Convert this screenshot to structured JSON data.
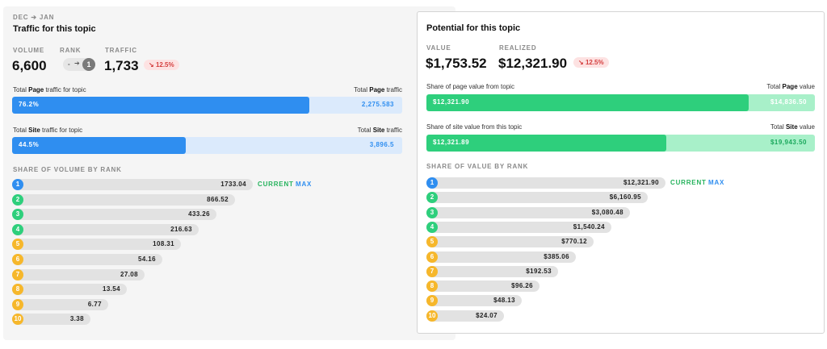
{
  "colors": {
    "blue": "#2f8ef0",
    "blue_light": "#dbeafc",
    "green": "#2ecf7c",
    "green_light": "#a8f0c9",
    "red": "#d43e3e",
    "rank_blue": "#2f8ef0",
    "rank_green": "#2ecf7c",
    "rank_yellow": "#f6b72b",
    "current": "#26b35d",
    "max": "#2f8ef0"
  },
  "traffic": {
    "period": "DEC ➔ JAN",
    "title": "Traffic for this topic",
    "volume_label": "VOLUME",
    "volume": "6,600",
    "rank_label": "RANK",
    "rank_from": "-",
    "rank_to": "1",
    "traffic_label": "TRAFFIC",
    "traffic": "1,733",
    "change": "12.5%",
    "page_bar": {
      "label_pre": "Total ",
      "label_bold": "Page",
      "label_post": " traffic for topic",
      "right_pre": "Total ",
      "right_bold": "Page",
      "right_post": " traffic",
      "percent_text": "76.2%",
      "fill_fraction": 0.762,
      "total": "2,275.583"
    },
    "site_bar": {
      "label_pre": "Total ",
      "label_bold": "Site",
      "label_post": " traffic for topic",
      "right_pre": "Total ",
      "right_bold": "Site",
      "right_post": " traffic",
      "percent_text": "44.5%",
      "fill_fraction": 0.445,
      "total": "3,896.5"
    },
    "rank_heading": "SHARE OF VOLUME BY RANK",
    "current_label": "CURRENT",
    "max_label": "MAX",
    "ranks": [
      {
        "rank": "1",
        "value": "1733.04",
        "amount": 1733.04
      },
      {
        "rank": "2",
        "value": "866.52",
        "amount": 866.52
      },
      {
        "rank": "3",
        "value": "433.26",
        "amount": 433.26
      },
      {
        "rank": "4",
        "value": "216.63",
        "amount": 216.63
      },
      {
        "rank": "5",
        "value": "108.31",
        "amount": 108.31
      },
      {
        "rank": "6",
        "value": "54.16",
        "amount": 54.16
      },
      {
        "rank": "7",
        "value": "27.08",
        "amount": 27.08
      },
      {
        "rank": "8",
        "value": "13.54",
        "amount": 13.54
      },
      {
        "rank": "9",
        "value": "6.77",
        "amount": 6.77
      },
      {
        "rank": "10",
        "value": "3.38",
        "amount": 3.38
      }
    ]
  },
  "potential": {
    "title": "Potential for this topic",
    "value_label": "VALUE",
    "value": "$1,753.52",
    "realized_label": "REALIZED",
    "realized": "$12,321.90",
    "change": "12.5%",
    "page_bar": {
      "label": "Share of page value from topic",
      "right_pre": "Total ",
      "right_bold": "Page",
      "right_post": " value",
      "left_value": "$12,321.90",
      "fill_fraction": 0.83,
      "total": "$14,836.50"
    },
    "site_bar": {
      "label": "Share of site value from this topic",
      "right_pre": "Total ",
      "right_bold": "Site",
      "right_post": " value",
      "left_value": "$12,321.89",
      "fill_fraction": 0.618,
      "total": "$19,943.50"
    },
    "rank_heading": "SHARE OF VALUE BY RANK",
    "current_label": "CURRENT",
    "max_label": "MAX",
    "ranks": [
      {
        "rank": "1",
        "value": "$12,321.90",
        "amount": 12321.9
      },
      {
        "rank": "2",
        "value": "$6,160.95",
        "amount": 6160.95
      },
      {
        "rank": "3",
        "value": "$3,080.48",
        "amount": 3080.48
      },
      {
        "rank": "4",
        "value": "$1,540.24",
        "amount": 1540.24
      },
      {
        "rank": "5",
        "value": "$770.12",
        "amount": 770.12
      },
      {
        "rank": "6",
        "value": "$385.06",
        "amount": 385.06
      },
      {
        "rank": "7",
        "value": "$192.53",
        "amount": 192.53
      },
      {
        "rank": "8",
        "value": "$96.26",
        "amount": 96.26
      },
      {
        "rank": "9",
        "value": "$48.13",
        "amount": 48.13
      },
      {
        "rank": "10",
        "value": "$24.07",
        "amount": 24.07
      }
    ]
  }
}
